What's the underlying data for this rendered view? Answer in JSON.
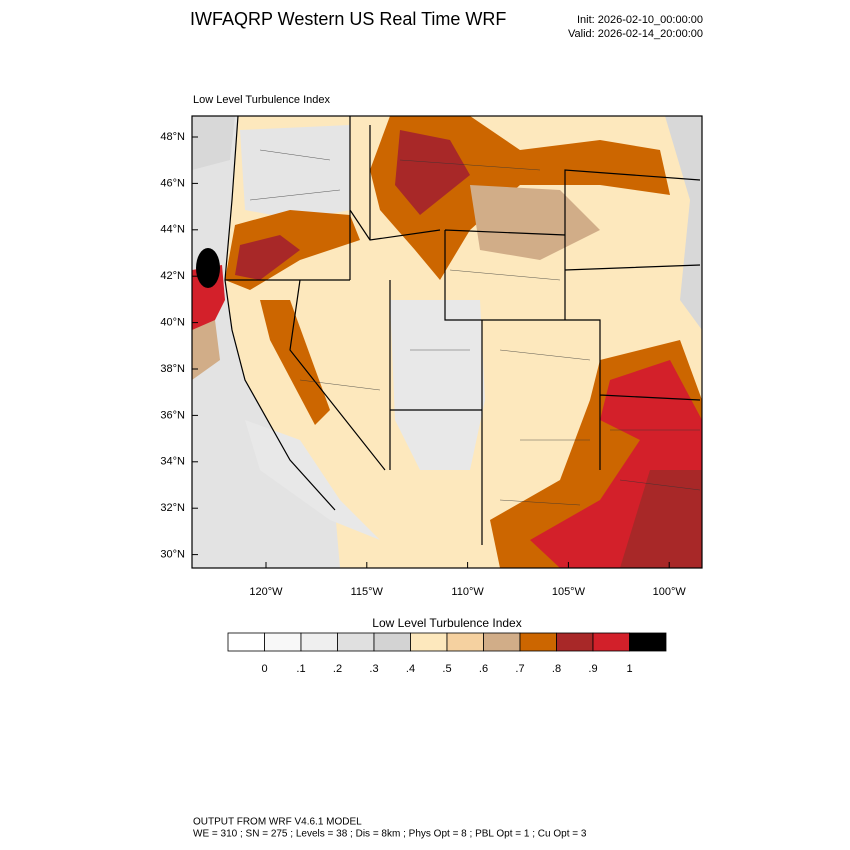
{
  "header": {
    "title": "IWFAQRP Western US Real Time WRF",
    "init": "Init: 2026-02-10_00:00:00",
    "valid": "Valid: 2026-02-14_20:00:00"
  },
  "map": {
    "title": "Low Level Turbulence Index",
    "lat_labels": [
      "48°N",
      "46°N",
      "44°N",
      "42°N",
      "40°N",
      "38°N",
      "36°N",
      "34°N",
      "32°N",
      "30°N"
    ],
    "lon_labels": [
      "120°W",
      "115°W",
      "110°W",
      "105°W",
      "100°W"
    ]
  },
  "colorbar": {
    "title": "Low Level Turbulence Index",
    "colors": [
      "#ffffff",
      "#f8f8f8",
      "#efefef",
      "#e0e0e0",
      "#d3d3d3",
      "#fde8bd",
      "#f5d1a0",
      "#d1ad88",
      "#cc6600",
      "#a82828",
      "#d2202a",
      "#000000"
    ],
    "labels": [
      "0",
      ".1",
      ".2",
      ".3",
      ".4",
      ".5",
      ".6",
      ".7",
      ".8",
      ".9",
      "1"
    ]
  },
  "footer": {
    "line1": "OUTPUT FROM WRF V4.6.1 MODEL",
    "line2": "WE = 310 ; SN = 275 ; Levels = 38 ; Dis = 8km ; Phys Opt = 8 ; PBL Opt = 1 ; Cu Opt = 3"
  }
}
